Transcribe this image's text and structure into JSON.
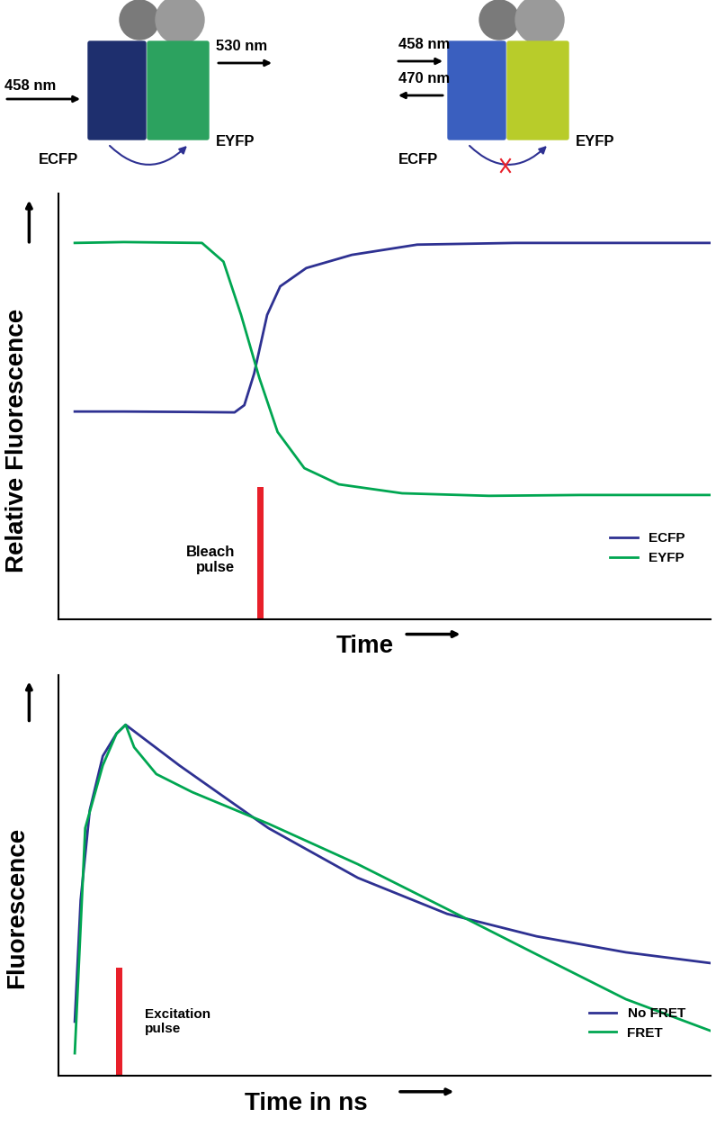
{
  "diagram": {
    "left_panel": {
      "donor": "ECFP",
      "acceptor": "EYFP",
      "excitation": "458 nm",
      "emission": "530 nm"
    },
    "right_panel": {
      "donor": "ECFP",
      "acceptor": "EYFP",
      "excitation": "458 nm",
      "emission": "470 nm"
    }
  },
  "chart_data": [
    {
      "type": "line",
      "y_label": "Relative Fluorescence",
      "x_label": "Time",
      "xlim": [
        0,
        100
      ],
      "ylim": [
        0,
        100
      ],
      "tick_labels": false,
      "legend": "lower right",
      "series": [
        {
          "name": "ECFP",
          "color": "#2e3192",
          "x": [
            2.5,
            10,
            20,
            27,
            28.5,
            30,
            32,
            34,
            38,
            45,
            55,
            70,
            85,
            100
          ],
          "values": [
            48.8,
            48.8,
            48.7,
            48.6,
            50.3,
            57.7,
            71.5,
            78.2,
            82.5,
            85.6,
            88,
            88.4,
            88.4,
            88.4
          ]
        },
        {
          "name": "EYFP",
          "color": "#00a651",
          "x": [
            2.5,
            10,
            22,
            25.3,
            28,
            30.8,
            33.6,
            37.7,
            43,
            52.7,
            66,
            80,
            100
          ],
          "values": [
            88.4,
            88.6,
            88.4,
            84,
            71.5,
            56.7,
            44,
            35.5,
            31.7,
            29.6,
            29,
            29.2,
            29.2
          ]
        }
      ],
      "pulse": {
        "x": 31,
        "height": 31,
        "label": "Bleach\npulse",
        "color": "#e8202a"
      }
    },
    {
      "type": "line",
      "y_label": "Fluorescence",
      "x_label": "Time in ns",
      "xlim": [
        0,
        100
      ],
      "ylim": [
        0,
        100
      ],
      "tick_labels": false,
      "legend": "lower right",
      "series": [
        {
          "name": "No FRET",
          "color": "#2e3192",
          "x": [
            2.5,
            3.4,
            4.8,
            6.8,
            8.9,
            10.3,
            18.5,
            32.2,
            45.9,
            59.6,
            73.3,
            87,
            100
          ],
          "values": [
            13.5,
            43.8,
            66.3,
            79.8,
            85.4,
            87.6,
            77.5,
            61.8,
            49.4,
            40.4,
            34.8,
            30.8,
            28.1
          ]
        },
        {
          "name": "FRET",
          "color": "#00a651",
          "x": [
            2.5,
            4.1,
            6.8,
            8.9,
            10.3,
            11.6,
            15,
            20.5,
            32.2,
            45.9,
            59.6,
            73.3,
            87,
            100
          ],
          "values": [
            5.6,
            61.8,
            77.5,
            85.4,
            87.6,
            82,
            75.3,
            70.8,
            62.9,
            52.8,
            41.6,
            30.3,
            19.1,
            11.2
          ]
        }
      ],
      "pulse": {
        "x": 9.3,
        "height": 27,
        "label": "Excitation\npulse",
        "color": "#e8202a"
      }
    }
  ]
}
